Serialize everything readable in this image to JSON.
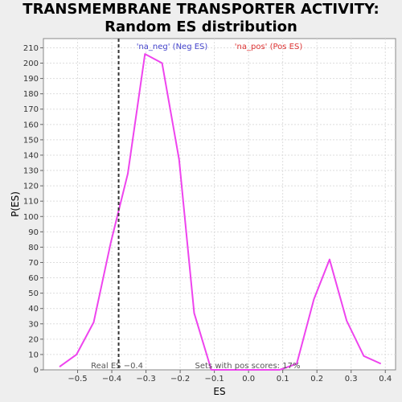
{
  "chart_data": {
    "type": "line",
    "title": "TRANSMEMBRANE TRANSPORTER ACTIVITY: Random ES distribution",
    "xlabel": "ES",
    "ylabel": "P(ES)",
    "xlim": [
      -0.6,
      0.43
    ],
    "ylim": [
      0,
      216
    ],
    "x_ticks": [
      -0.5,
      -0.4,
      -0.3,
      -0.2,
      -0.1,
      0.0,
      0.1,
      0.2,
      0.3,
      0.4
    ],
    "x_tick_labels": [
      "−0.5",
      "−0.4",
      "−0.3",
      "−0.2",
      "−0.1",
      "0.0",
      "0.1",
      "0.2",
      "0.3",
      "0.4"
    ],
    "y_ticks": [
      0,
      10,
      20,
      30,
      40,
      50,
      60,
      70,
      80,
      90,
      100,
      110,
      120,
      130,
      140,
      150,
      160,
      170,
      180,
      190,
      200,
      210
    ],
    "grid": true,
    "series": [
      {
        "color": "#ee44ee",
        "x": [
          -0.553,
          -0.503,
          -0.453,
          -0.403,
          -0.353,
          -0.303,
          -0.253,
          -0.203,
          -0.159,
          -0.109,
          -0.059,
          -0.009,
          0.041,
          0.091,
          0.141,
          0.191,
          0.237,
          0.287,
          0.337,
          0.387
        ],
        "y": [
          2,
          10,
          31,
          83,
          128,
          206,
          200,
          137,
          37,
          0,
          0,
          0,
          0,
          0,
          4,
          46,
          72,
          32,
          9,
          4
        ]
      }
    ],
    "real_es": {
      "value": -0.38,
      "label": "Real ES −0.4",
      "color": "#333333"
    },
    "annotations": {
      "neg_label": "'na_neg' (Neg ES)",
      "neg_color": "#4444cc",
      "pos_label": "'na_pos' (Pos ES)",
      "pos_color": "#dd3333",
      "pos_scores": "Sets with pos scores: 17%"
    }
  }
}
